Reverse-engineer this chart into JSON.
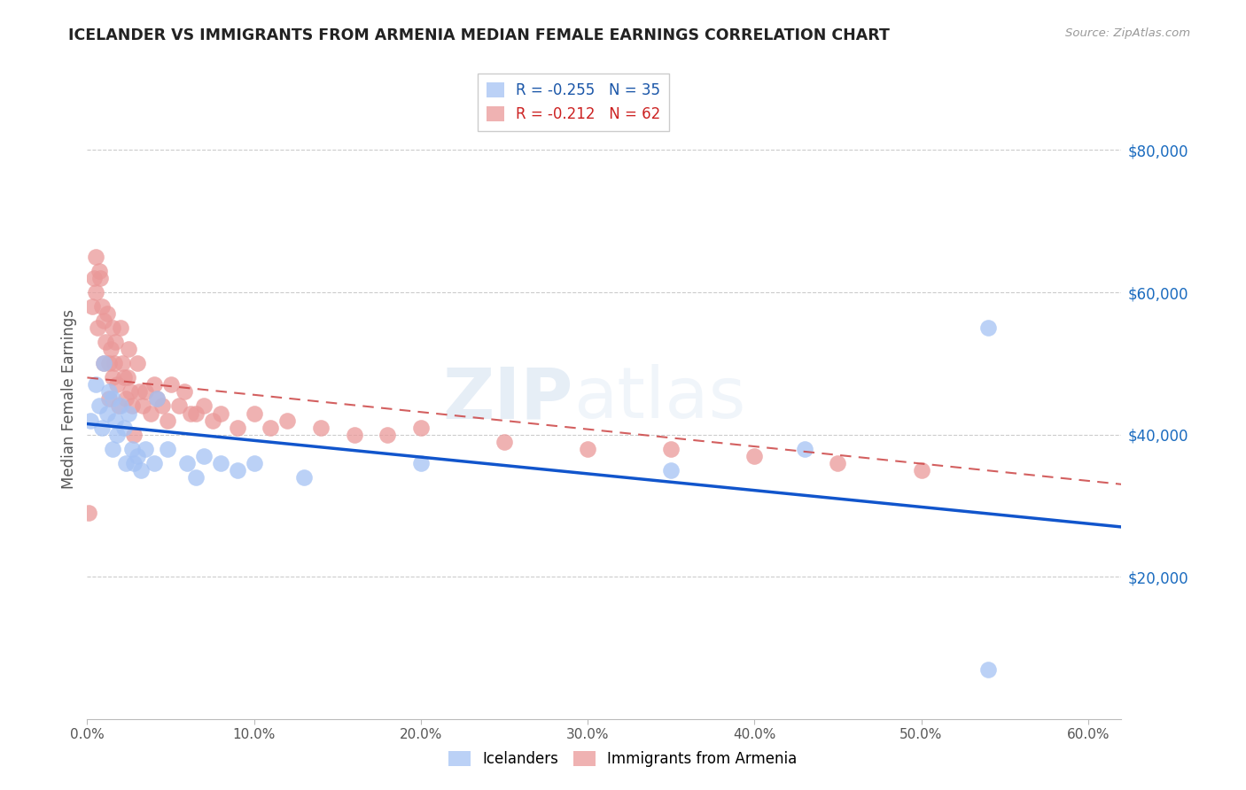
{
  "title": "ICELANDER VS IMMIGRANTS FROM ARMENIA MEDIAN FEMALE EARNINGS CORRELATION CHART",
  "source": "Source: ZipAtlas.com",
  "ylabel": "Median Female Earnings",
  "xlabel_ticks": [
    "0.0%",
    "10.0%",
    "20.0%",
    "30.0%",
    "40.0%",
    "50.0%",
    "60.0%"
  ],
  "xlabel_vals": [
    0.0,
    0.1,
    0.2,
    0.3,
    0.4,
    0.5,
    0.6
  ],
  "ytick_labels": [
    "$20,000",
    "$40,000",
    "$60,000",
    "$80,000"
  ],
  "ytick_vals": [
    20000,
    40000,
    60000,
    80000
  ],
  "ylim": [
    0,
    90000
  ],
  "xlim": [
    0.0,
    0.62
  ],
  "icelander_color": "#a4c2f4",
  "armenia_color": "#ea9999",
  "icelander_line_color": "#1155cc",
  "armenia_line_color": "#cc4444",
  "watermark_color": "#c5d9f1",
  "icelander_R": -0.255,
  "icelander_N": 35,
  "armenia_R": -0.212,
  "armenia_N": 62,
  "icelander_scatter_x": [
    0.002,
    0.005,
    0.007,
    0.009,
    0.01,
    0.012,
    0.013,
    0.015,
    0.015,
    0.017,
    0.018,
    0.02,
    0.022,
    0.023,
    0.025,
    0.027,
    0.028,
    0.03,
    0.032,
    0.035,
    0.04,
    0.042,
    0.048,
    0.06,
    0.065,
    0.07,
    0.08,
    0.09,
    0.1,
    0.13,
    0.2,
    0.35,
    0.43,
    0.54,
    0.54
  ],
  "icelander_scatter_y": [
    42000,
    47000,
    44000,
    41000,
    50000,
    43000,
    46000,
    45000,
    38000,
    42000,
    40000,
    44000,
    41000,
    36000,
    43000,
    38000,
    36000,
    37000,
    35000,
    38000,
    36000,
    45000,
    38000,
    36000,
    34000,
    37000,
    36000,
    35000,
    36000,
    34000,
    36000,
    35000,
    38000,
    55000,
    7000
  ],
  "armenia_scatter_x": [
    0.001,
    0.003,
    0.004,
    0.005,
    0.005,
    0.006,
    0.007,
    0.008,
    0.009,
    0.01,
    0.01,
    0.011,
    0.012,
    0.013,
    0.013,
    0.014,
    0.015,
    0.015,
    0.016,
    0.017,
    0.018,
    0.019,
    0.02,
    0.021,
    0.022,
    0.023,
    0.024,
    0.025,
    0.026,
    0.027,
    0.028,
    0.03,
    0.031,
    0.033,
    0.035,
    0.038,
    0.04,
    0.042,
    0.045,
    0.048,
    0.05,
    0.055,
    0.058,
    0.062,
    0.065,
    0.07,
    0.075,
    0.08,
    0.09,
    0.1,
    0.11,
    0.12,
    0.14,
    0.16,
    0.18,
    0.2,
    0.25,
    0.3,
    0.35,
    0.4,
    0.45,
    0.5
  ],
  "armenia_scatter_y": [
    29000,
    58000,
    62000,
    65000,
    60000,
    55000,
    63000,
    62000,
    58000,
    56000,
    50000,
    53000,
    57000,
    50000,
    45000,
    52000,
    55000,
    48000,
    50000,
    53000,
    47000,
    44000,
    55000,
    50000,
    48000,
    45000,
    48000,
    52000,
    46000,
    44000,
    40000,
    50000,
    46000,
    44000,
    46000,
    43000,
    47000,
    45000,
    44000,
    42000,
    47000,
    44000,
    46000,
    43000,
    43000,
    44000,
    42000,
    43000,
    41000,
    43000,
    41000,
    42000,
    41000,
    40000,
    40000,
    41000,
    39000,
    38000,
    38000,
    37000,
    36000,
    35000
  ],
  "icelander_line_x": [
    0.0,
    0.62
  ],
  "icelander_line_y": [
    41500,
    27000
  ],
  "armenia_line_x": [
    0.0,
    0.62
  ],
  "armenia_line_y": [
    48000,
    33000
  ]
}
